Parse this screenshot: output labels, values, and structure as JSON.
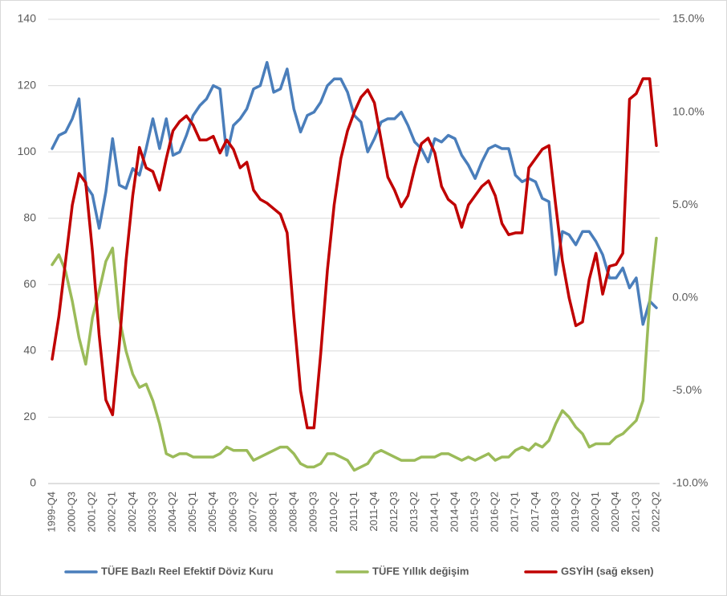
{
  "chart_data": {
    "type": "line",
    "categories": [
      "1999-Q4",
      null,
      null,
      "2000-Q3",
      null,
      null,
      "2001-Q2",
      null,
      null,
      "2002-Q1",
      null,
      null,
      "2002-Q4",
      null,
      null,
      "2003-Q3",
      null,
      null,
      "2004-Q2",
      null,
      null,
      "2005-Q1",
      null,
      null,
      "2005-Q4",
      null,
      null,
      "2006-Q3",
      null,
      null,
      "2007-Q2",
      null,
      null,
      "2008-Q1",
      null,
      null,
      "2008-Q4",
      null,
      null,
      "2009-Q3",
      null,
      null,
      "2010-Q2",
      null,
      null,
      "2011-Q1",
      null,
      null,
      "2011-Q4",
      null,
      null,
      "2012-Q3",
      null,
      null,
      "2013-Q2",
      null,
      null,
      "2014-Q1",
      null,
      null,
      "2014-Q4",
      null,
      null,
      "2015-Q3",
      null,
      null,
      "2016-Q2",
      null,
      null,
      "2017-Q1",
      null,
      null,
      "2017-Q4",
      null,
      null,
      "2018-Q3",
      null,
      null,
      "2019-Q2",
      null,
      null,
      "2020-Q1",
      null,
      null,
      "2020-Q4",
      null,
      null,
      "2021-Q3",
      null,
      null,
      "2022-Q2"
    ],
    "series": [
      {
        "name": "TÜFE Bazlı Reel Efektif Döviz Kuru",
        "color": "#4a7ebb",
        "values": [
          101,
          105,
          106,
          110,
          116,
          90,
          87,
          77,
          88,
          104,
          90,
          89,
          95,
          93,
          101,
          110,
          101,
          110,
          99,
          100,
          105,
          111,
          114,
          116,
          120,
          119,
          99,
          108,
          110,
          113,
          119,
          120,
          127,
          118,
          119,
          125,
          113,
          106,
          111,
          112,
          115,
          120,
          122,
          122,
          118,
          111,
          109,
          100,
          104,
          109,
          110,
          110,
          112,
          108,
          103,
          101,
          97,
          104,
          103,
          105,
          104,
          99,
          96,
          92,
          97,
          101,
          102,
          101,
          101,
          93,
          91,
          92,
          91,
          86,
          85,
          63,
          76,
          75,
          72,
          76,
          76,
          73,
          69,
          62,
          62,
          65,
          59,
          62,
          48,
          55,
          53
        ]
      },
      {
        "name": "TÜFE Yıllık değişim",
        "color": "#9bbb59",
        "values": [
          66,
          69,
          64,
          55,
          44,
          36,
          50,
          58,
          67,
          71,
          50,
          40,
          33,
          29,
          30,
          25,
          18,
          9,
          8,
          9,
          9,
          8,
          8,
          8,
          8,
          9,
          11,
          10,
          10,
          10,
          7,
          8,
          9,
          10,
          11,
          11,
          9,
          6,
          5,
          5,
          6,
          9,
          9,
          8,
          7,
          4,
          5,
          6,
          9,
          10,
          9,
          8,
          7,
          7,
          7,
          8,
          8,
          8,
          9,
          9,
          8,
          7,
          8,
          7,
          8,
          9,
          7,
          8,
          8,
          10,
          11,
          10,
          12,
          11,
          13,
          18,
          22,
          20,
          17,
          15,
          11,
          12,
          12,
          12,
          14,
          15,
          17,
          19,
          25,
          55,
          74
        ]
      },
      {
        "name": "GSYİH (sağ eksen)",
        "color": "#c00000",
        "axis": "y2",
        "values": [
          -3.3,
          -1,
          2,
          5,
          6.7,
          6.2,
          2.5,
          -2,
          -5.5,
          -6.3,
          -2.5,
          2,
          5.5,
          8.1,
          7,
          6.8,
          5.8,
          7.5,
          9,
          9.5,
          9.8,
          9.3,
          8.5,
          8.5,
          8.7,
          7.8,
          8.5,
          8,
          7,
          7.3,
          5.8,
          5.3,
          5.1,
          4.8,
          4.5,
          3.5,
          -1,
          -5,
          -7,
          -7,
          -3,
          1.5,
          5,
          7.5,
          9,
          10,
          10.8,
          11.2,
          10.5,
          8.5,
          6.5,
          5.8,
          4.9,
          5.5,
          7,
          8.3,
          8.6,
          7.8,
          6,
          5.3,
          5,
          3.8,
          5,
          5.5,
          6,
          6.3,
          5.5,
          4,
          3.4,
          3.5,
          3.5,
          7,
          7.5,
          8,
          8.2,
          5,
          2,
          0,
          -1.5,
          -1.3,
          1,
          2.4,
          0.2,
          1.7,
          1.8,
          2.4,
          10.7,
          11,
          11.8,
          11.8,
          8.2
        ]
      }
    ],
    "ylim": [
      0,
      140
    ],
    "yticks": [
      0,
      20,
      40,
      60,
      80,
      100,
      120,
      140
    ],
    "y2lim": [
      -10,
      15
    ],
    "y2ticks": [
      {
        "value": -10,
        "label": "-10.0%"
      },
      {
        "value": -5,
        "label": "-5.0%"
      },
      {
        "value": 0,
        "label": "0.0%"
      },
      {
        "value": 5,
        "label": "5.0%"
      },
      {
        "value": 10,
        "label": "10.0%"
      },
      {
        "value": 15,
        "label": "15.0%"
      }
    ],
    "grid": true,
    "legend": "bottom"
  }
}
